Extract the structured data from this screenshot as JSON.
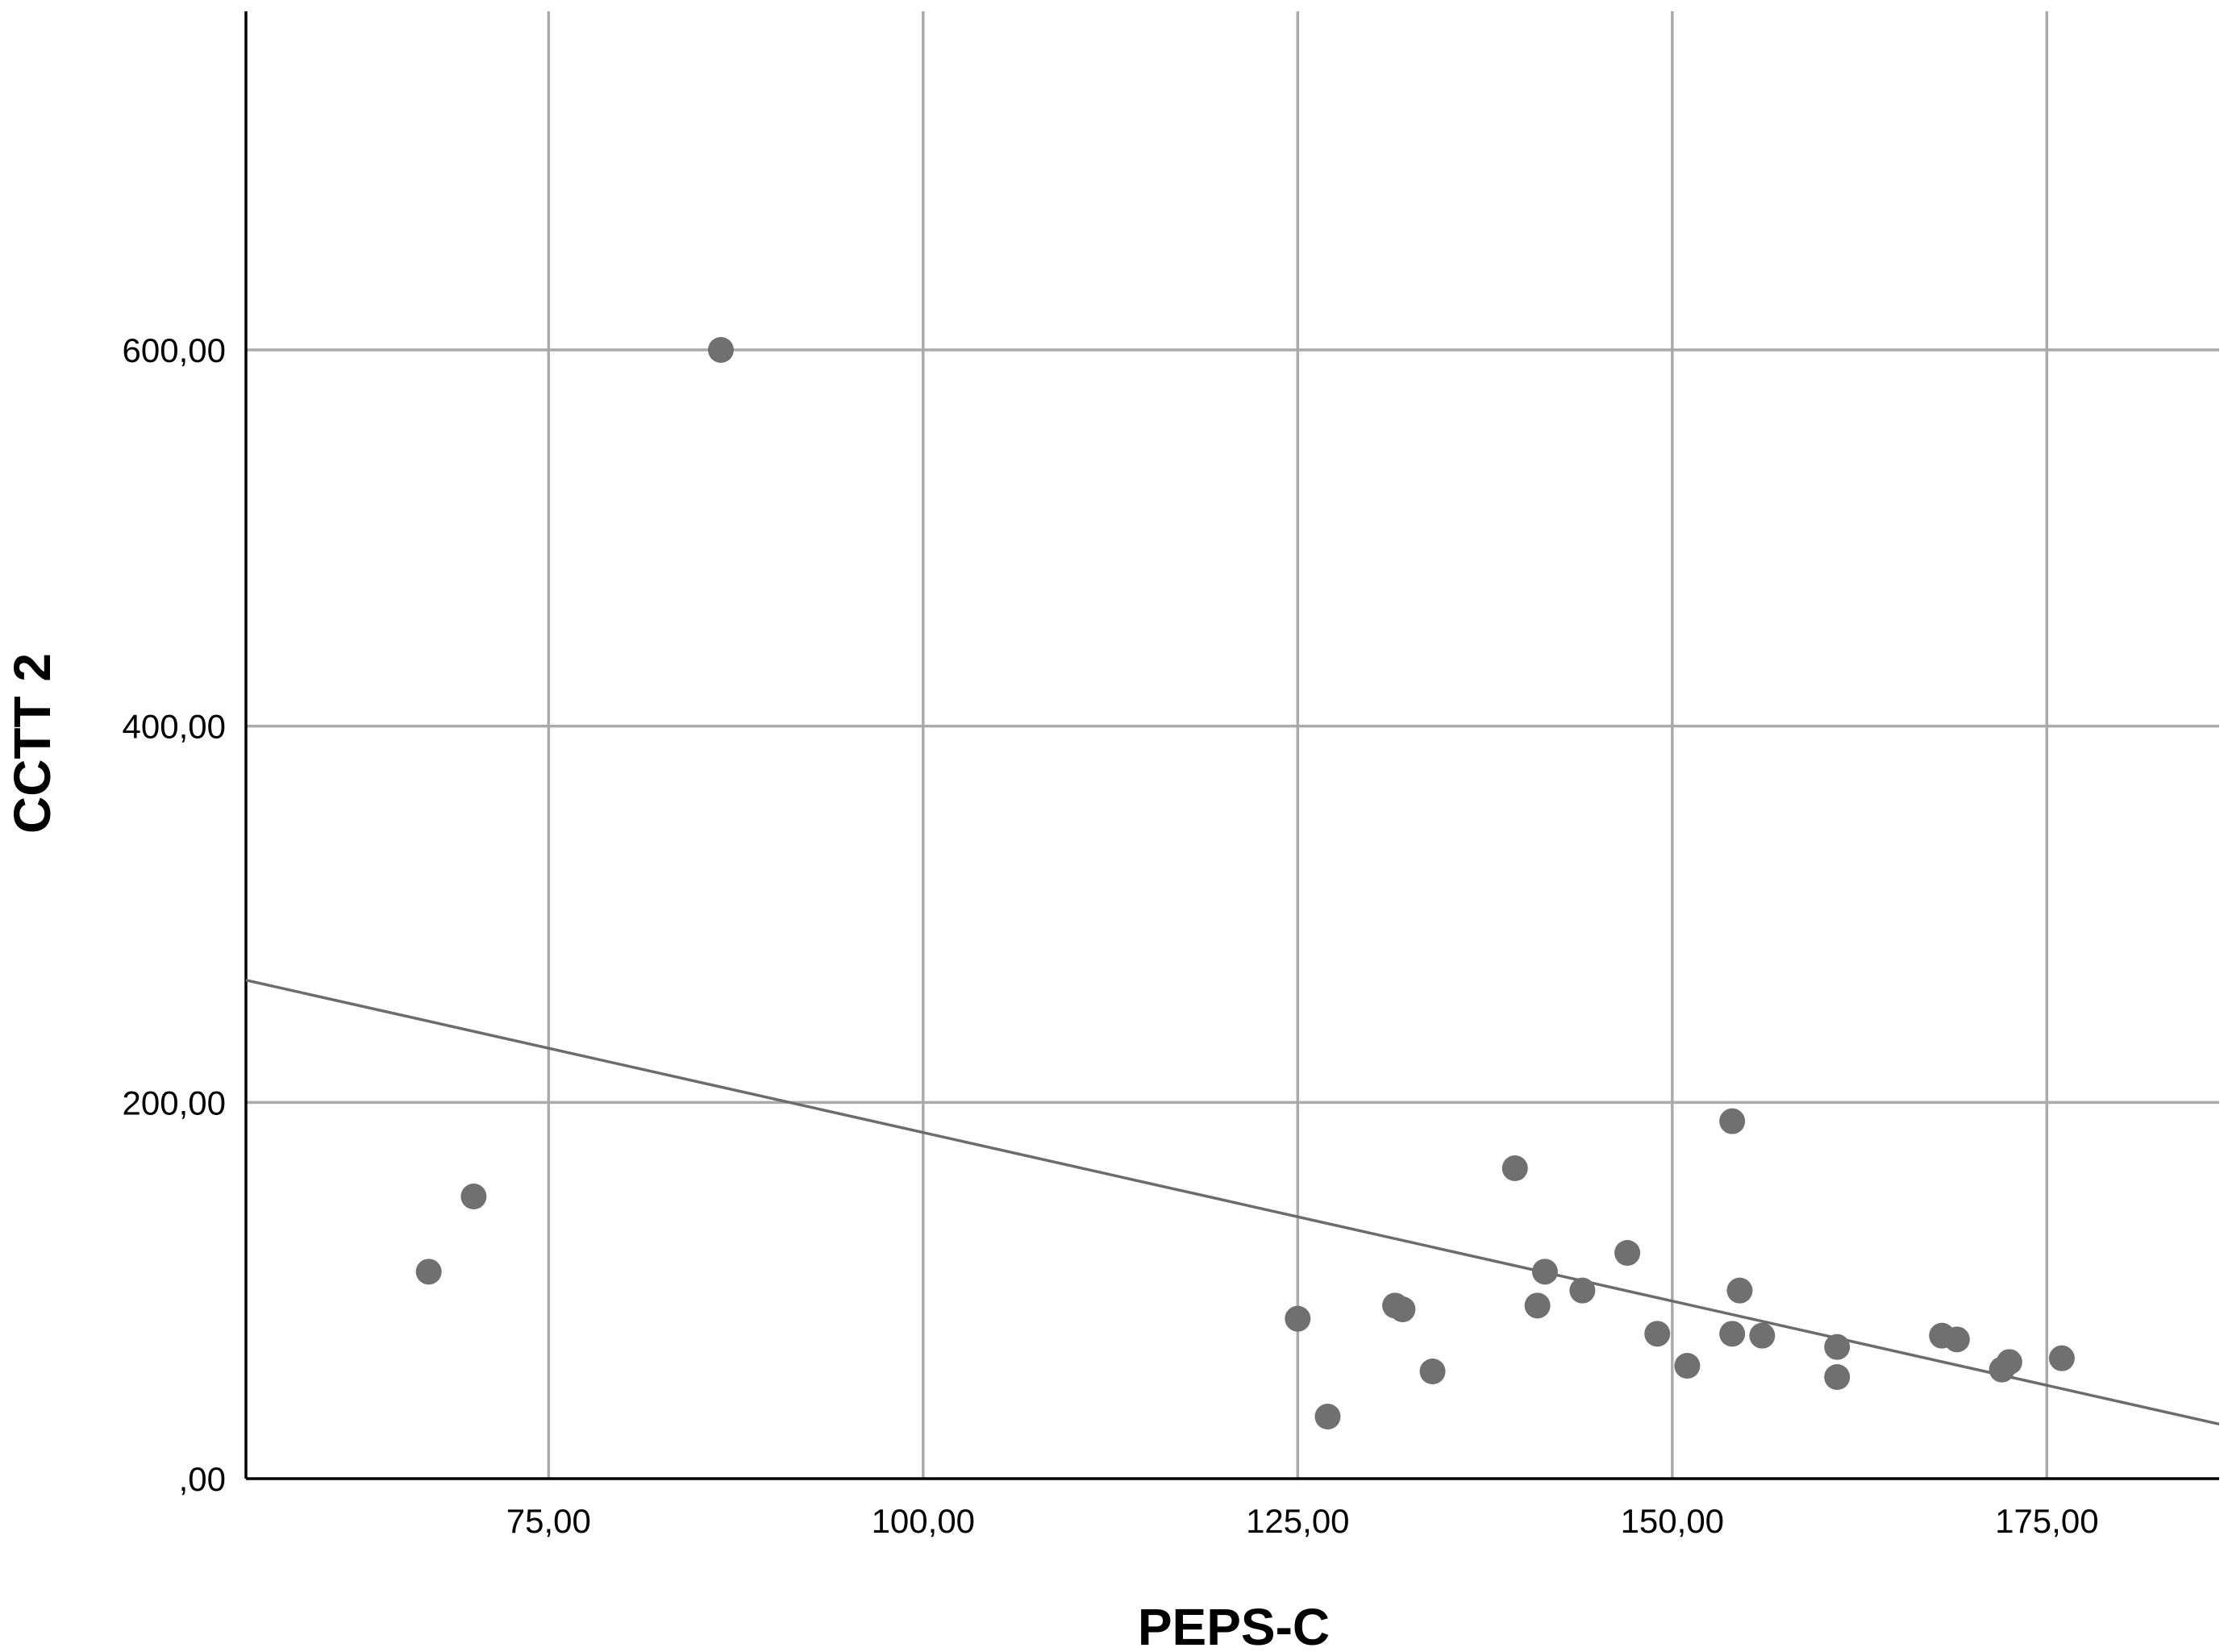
{
  "chart_data": {
    "type": "scatter",
    "xlabel": "PEPS-C",
    "ylabel": "CCTT 2",
    "xlim": [
      54.8,
      186.5
    ],
    "ylim": [
      0,
      780
    ],
    "x_ticks": [
      {
        "value": 75,
        "label": "75,00"
      },
      {
        "value": 100,
        "label": "100,00"
      },
      {
        "value": 125,
        "label": "125,00"
      },
      {
        "value": 150,
        "label": "150,00"
      },
      {
        "value": 175,
        "label": "175,00"
      }
    ],
    "y_ticks": [
      {
        "value": 0,
        "label": ",00"
      },
      {
        "value": 200,
        "label": "200,00"
      },
      {
        "value": 400,
        "label": "400,00"
      },
      {
        "value": 600,
        "label": "600,00"
      }
    ],
    "grid": true,
    "colors": {
      "points": "#707070",
      "fit_line": "#6c6c6c",
      "grid": "#aaaaaa",
      "axis": "#000000"
    },
    "points": [
      {
        "x": 67,
        "y": 110
      },
      {
        "x": 70,
        "y": 150
      },
      {
        "x": 86.5,
        "y": 600
      },
      {
        "x": 125,
        "y": 85
      },
      {
        "x": 127,
        "y": 33
      },
      {
        "x": 131.5,
        "y": 92
      },
      {
        "x": 132,
        "y": 90
      },
      {
        "x": 134,
        "y": 57
      },
      {
        "x": 139.5,
        "y": 165
      },
      {
        "x": 141,
        "y": 92
      },
      {
        "x": 141.5,
        "y": 110
      },
      {
        "x": 144,
        "y": 100
      },
      {
        "x": 147,
        "y": 120
      },
      {
        "x": 149,
        "y": 77
      },
      {
        "x": 151,
        "y": 60
      },
      {
        "x": 154,
        "y": 190
      },
      {
        "x": 154,
        "y": 77
      },
      {
        "x": 154.5,
        "y": 100
      },
      {
        "x": 156,
        "y": 76
      },
      {
        "x": 161,
        "y": 70
      },
      {
        "x": 161,
        "y": 54
      },
      {
        "x": 168,
        "y": 76
      },
      {
        "x": 169,
        "y": 74
      },
      {
        "x": 172,
        "y": 58
      },
      {
        "x": 172.5,
        "y": 62
      },
      {
        "x": 176,
        "y": 64
      }
    ],
    "fit_line": {
      "type": "linear",
      "from": {
        "x": 54.8,
        "y": 265
      },
      "to": {
        "x": 186.5,
        "y": 29
      }
    }
  }
}
